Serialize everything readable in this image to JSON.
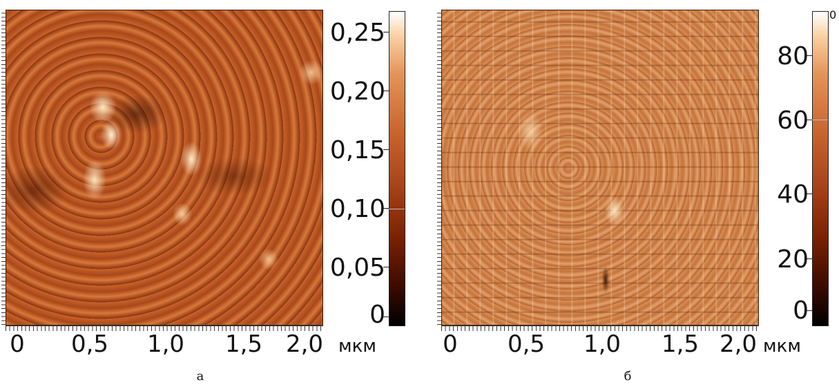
{
  "panels": [
    {
      "caption": "а",
      "x_ticks": [
        "0",
        "0,5",
        "1,0",
        "1,5",
        "2,0"
      ],
      "x_unit": "мкм",
      "colorbar_ticks": [
        "0,25",
        "0,20",
        "0,15",
        "0,10",
        "0,05",
        "0"
      ]
    },
    {
      "caption": "б",
      "x_ticks": [
        "0",
        "0,5",
        "1,0",
        "1,5",
        "2,0"
      ],
      "x_unit": "мкм",
      "colorbar_ticks": [
        "80",
        "60",
        "40",
        "20",
        "0"
      ],
      "colorbar_corner": "0"
    }
  ],
  "colors": {
    "colormap": [
      "#000000",
      "#3a0a00",
      "#7a2200",
      "#a8441a",
      "#c9662e",
      "#e49358",
      "#f9cfa0",
      "#ffffff"
    ]
  }
}
